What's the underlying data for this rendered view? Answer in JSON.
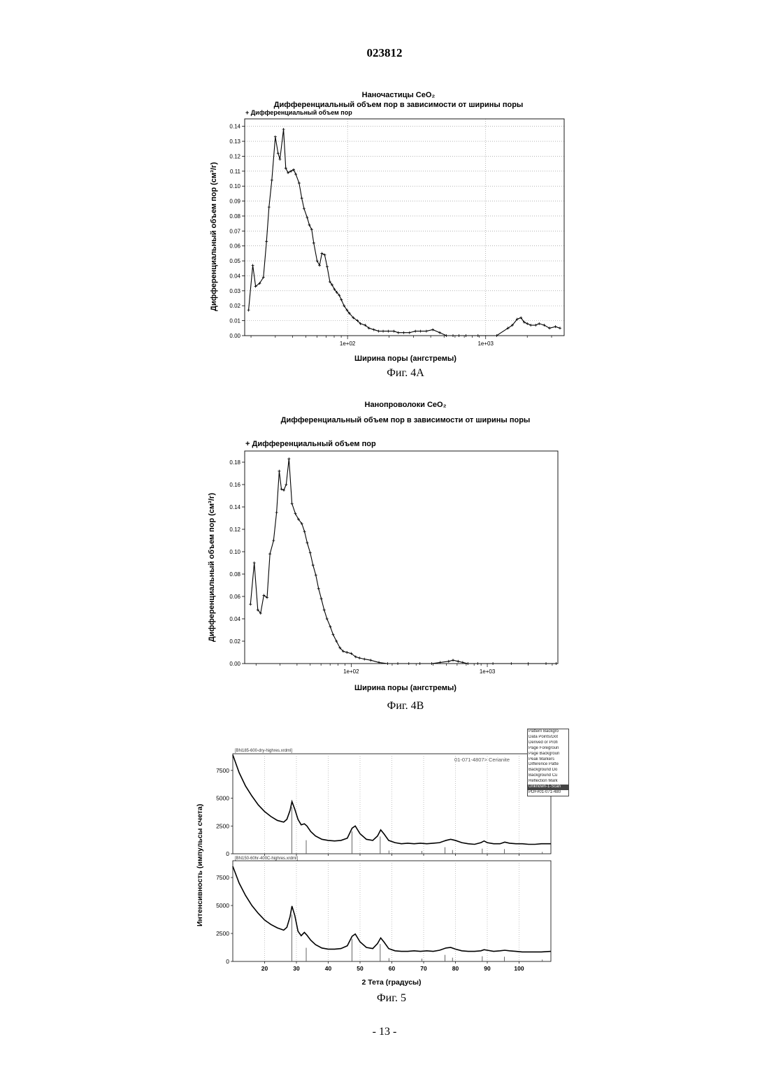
{
  "page": {
    "number": "023812",
    "footer": "- 13 -"
  },
  "fig4a": {
    "caption": "Фиг. 4А",
    "title": "Наночастицы CeO₂",
    "subtitle": "Дифференциальный объем пор в зависимости от ширины поры",
    "legend": "+ Дифференциальный объем пор",
    "ylabel": "Дифференциальный объем пор (см³/г)",
    "xlabel": "Ширина поры (ангстремы)"
  },
  "fig4b": {
    "caption": "Фиг. 4В",
    "title": "Нанопроволоки CeO₂",
    "subtitle": "Дифференциальный объем пор в зависимости от ширины поры",
    "legend": "+ Дифференциальный объем пор",
    "ylabel": "Дифференциальный объем пор (см³/г)",
    "xlabel": "Ширина поры (ангстремы)"
  },
  "fig5": {
    "caption": "Фиг. 5",
    "ylabel": "Интенсивность (импульсы счета)",
    "xlabel": "2 Тета (градусы)",
    "top_panel_label": "[BN185-600-dry-highres.xrdml]",
    "bottom_panel_label": "[BN150-60hr-400C-highres.xrdml]",
    "reference_label": "01-071-4807> Cerianite",
    "key_items": [
      "Pattern Backgro",
      "Data Points/Dot",
      "Derived or Profi",
      "Page Foregroun",
      "Page Backgroun",
      "Peak Markers",
      "Difference Patte",
      "Background Do",
      "Background Cu",
      "Reflection Mark",
      "Unknown-1-Scan",
      "PDF#01-071-480"
    ]
  },
  "chart_data": [
    {
      "id": "fig4a",
      "type": "line",
      "title": "Наночастицы CeO₂",
      "subtitle": "Дифференциальный объем пор в зависимости от ширины поры",
      "xlabel": "Ширина поры (ангстремы)",
      "ylabel": "Дифференциальный объем пор (см³/г)",
      "xscale": "log",
      "xlim": [
        18,
        3700
      ],
      "ylim": [
        0,
        0.145
      ],
      "xticks": [
        100,
        1000
      ],
      "xtick_labels": [
        "1e+02",
        "1e+03"
      ],
      "yticks": [
        0,
        0.01,
        0.02,
        0.03,
        0.04,
        0.05,
        0.06,
        0.07,
        0.08,
        0.09,
        0.1,
        0.11,
        0.12,
        0.13,
        0.14
      ],
      "ytick_labels": [
        "0.00",
        "0.01",
        "0.02",
        "0.03",
        "0.04",
        "0.05",
        "0.06",
        "0.07",
        "0.08",
        "0.09",
        "0.10",
        "0.11",
        "0.12",
        "0.13",
        "0.14"
      ],
      "grid": "dotted",
      "legend": "top-left",
      "series": [
        {
          "name": "Дифференциальный объем пор",
          "marker": "+",
          "x": [
            19.2,
            20.6,
            21.6,
            23.1,
            24.6,
            25.9,
            27.0,
            28.3,
            30.0,
            31.4,
            32.4,
            34.4,
            35.7,
            37.1,
            38.9,
            40.7,
            42.2,
            44.6,
            46.6,
            48.4,
            51.0,
            52.9,
            55.0,
            56.9,
            60.2,
            62.7,
            65.2,
            68.3,
            71.2,
            74.5,
            77.2,
            80.4,
            83.5,
            87.1,
            90.2,
            94.3,
            99.2,
            103,
            110,
            118,
            124,
            134,
            143,
            155,
            168,
            181,
            197,
            216,
            233,
            255,
            281,
            310,
            338,
            372,
            414,
            465,
            520,
            580,
            640,
            720,
            880,
            1200,
            1450,
            1560,
            1690,
            1800,
            1900,
            2000,
            2120,
            2300,
            2440,
            2650,
            2900,
            3200,
            3450
          ],
          "y": [
            0.017,
            0.047,
            0.033,
            0.035,
            0.039,
            0.063,
            0.086,
            0.104,
            0.133,
            0.122,
            0.118,
            0.138,
            0.112,
            0.109,
            0.11,
            0.111,
            0.108,
            0.102,
            0.092,
            0.085,
            0.079,
            0.074,
            0.071,
            0.062,
            0.05,
            0.047,
            0.055,
            0.054,
            0.046,
            0.036,
            0.034,
            0.031,
            0.029,
            0.027,
            0.024,
            0.02,
            0.017,
            0.015,
            0.012,
            0.01,
            0.008,
            0.007,
            0.005,
            0.004,
            0.003,
            0.003,
            0.003,
            0.003,
            0.002,
            0.002,
            0.002,
            0.003,
            0.003,
            0.003,
            0.004,
            0.002,
            0.0,
            0.0,
            0.0,
            0.0,
            0.0,
            0.0,
            0.005,
            0.007,
            0.011,
            0.012,
            0.009,
            0.008,
            0.007,
            0.007,
            0.008,
            0.007,
            0.005,
            0.006,
            0.005
          ]
        }
      ]
    },
    {
      "id": "fig4b",
      "type": "line",
      "title": "Нанопроволоки CeO₂",
      "subtitle": "Дифференциальный объем пор в зависимости от ширины поры",
      "xlabel": "Ширина поры (ангстремы)",
      "ylabel": "Дифференциальный объем пор (см³/г)",
      "xscale": "log",
      "xlim": [
        16.5,
        3300
      ],
      "ylim": [
        0,
        0.19
      ],
      "xticks": [
        100,
        1000
      ],
      "xtick_labels": [
        "1e+02",
        "1e+03"
      ],
      "yticks": [
        0,
        0.02,
        0.04,
        0.06,
        0.08,
        0.1,
        0.12,
        0.14,
        0.16,
        0.18
      ],
      "ytick_labels": [
        "0.00",
        "0.02",
        "0.04",
        "0.06",
        "0.08",
        "0.10",
        "0.12",
        "0.14",
        "0.16",
        "0.18"
      ],
      "grid": "off",
      "legend": "top-left",
      "series": [
        {
          "name": "Дифференциальный объем пор",
          "marker": "+",
          "x": [
            18.2,
            19.4,
            20.6,
            21.6,
            22.8,
            24.1,
            25.3,
            26.9,
            28.3,
            29.6,
            30.7,
            32.0,
            33.3,
            34.9,
            36.7,
            38.9,
            41.0,
            43.4,
            45.4,
            47.5,
            50.0,
            52.4,
            55.0,
            57.6,
            60.3,
            63.3,
            66.4,
            70.2,
            73.6,
            77.9,
            82.7,
            87.4,
            93.0,
            100,
            108,
            115,
            125,
            139,
            160,
            185,
            220,
            265,
            320,
            390,
            450,
            520,
            560,
            610,
            660,
            720,
            850,
            1100,
            1500,
            2000,
            2700,
            3200
          ],
          "y": [
            0.053,
            0.09,
            0.048,
            0.045,
            0.061,
            0.059,
            0.098,
            0.11,
            0.135,
            0.172,
            0.156,
            0.155,
            0.16,
            0.183,
            0.143,
            0.134,
            0.129,
            0.125,
            0.118,
            0.108,
            0.099,
            0.088,
            0.079,
            0.067,
            0.058,
            0.048,
            0.04,
            0.033,
            0.026,
            0.02,
            0.014,
            0.011,
            0.01,
            0.009,
            0.006,
            0.005,
            0.004,
            0.003,
            0.001,
            0.0,
            0.0,
            0.0,
            0.0,
            0.0,
            0.001,
            0.002,
            0.003,
            0.002,
            0.001,
            0.0,
            0.0,
            0.0,
            0.0,
            0.0,
            0.0,
            0.0
          ]
        }
      ]
    },
    {
      "id": "fig5",
      "type": "line",
      "xlabel": "2 Тета (градусы)",
      "ylabel": "Интенсивность (импульсы счета)",
      "xlim": [
        10,
        110
      ],
      "ylim": [
        0,
        9000
      ],
      "xticks": [
        20,
        30,
        40,
        50,
        60,
        70,
        80,
        90,
        100
      ],
      "yticks": [
        0,
        2500,
        5000,
        7500
      ],
      "panels": [
        {
          "label": "[BN185-600-dry-highres.xrdml]",
          "x": [
            10,
            12,
            14,
            16,
            18,
            20,
            22,
            24,
            26,
            27,
            28,
            28.6,
            29.5,
            30.5,
            31.5,
            32.5,
            33.3,
            34.5,
            36,
            38,
            40,
            42,
            44,
            46,
            47.5,
            48.5,
            50,
            52,
            54,
            55.5,
            56.5,
            57.5,
            59,
            61,
            63,
            65,
            67,
            69,
            71,
            73,
            75,
            77,
            78.5,
            80,
            82,
            84,
            86,
            88,
            89,
            90,
            92,
            94,
            95.5,
            97,
            99,
            101,
            103,
            105,
            107,
            110
          ],
          "y": [
            8900,
            7300,
            6100,
            5200,
            4400,
            3800,
            3350,
            3000,
            2850,
            3100,
            3900,
            4700,
            4000,
            3100,
            2600,
            2700,
            2500,
            2000,
            1600,
            1300,
            1200,
            1150,
            1200,
            1400,
            2300,
            2500,
            1800,
            1300,
            1200,
            1600,
            2150,
            1800,
            1200,
            1000,
            900,
            950,
            900,
            950,
            900,
            950,
            1000,
            1200,
            1300,
            1200,
            1000,
            900,
            850,
            1000,
            1150,
            1000,
            900,
            900,
            1050,
            950,
            900,
            900,
            850,
            850,
            900,
            900
          ]
        },
        {
          "label": "[BN150-60hr-400C-highres.xrdml]",
          "x": [
            10,
            12,
            14,
            16,
            18,
            20,
            22,
            24,
            26,
            27,
            28,
            28.6,
            29.5,
            30.5,
            31.5,
            32.5,
            33.3,
            34.5,
            36,
            38,
            40,
            42,
            44,
            46,
            47.5,
            48.5,
            50,
            52,
            54,
            55.5,
            56.5,
            57.5,
            59,
            61,
            63,
            65,
            67,
            69,
            71,
            73,
            75,
            77,
            78.5,
            80,
            82,
            84,
            86,
            88,
            89,
            90,
            92,
            94,
            95.5,
            97,
            99,
            101,
            103,
            105,
            107,
            110
          ],
          "y": [
            8500,
            7000,
            5900,
            5000,
            4300,
            3700,
            3300,
            3000,
            2800,
            3050,
            4000,
            4950,
            4100,
            2700,
            2300,
            2600,
            2350,
            1900,
            1500,
            1200,
            1100,
            1100,
            1150,
            1400,
            2250,
            2450,
            1750,
            1250,
            1150,
            1600,
            2100,
            1750,
            1150,
            950,
            900,
            900,
            950,
            900,
            950,
            900,
            1000,
            1200,
            1250,
            1100,
            950,
            900,
            900,
            950,
            1050,
            1000,
            900,
            950,
            1000,
            950,
            900,
            850,
            850,
            850,
            850,
            900
          ]
        }
      ],
      "reference_peaks": [
        {
          "x": 28.55,
          "rel": 1.0
        },
        {
          "x": 33.08,
          "rel": 0.29
        },
        {
          "x": 47.48,
          "rel": 0.48
        },
        {
          "x": 56.34,
          "rel": 0.37
        },
        {
          "x": 59.09,
          "rel": 0.07
        },
        {
          "x": 69.42,
          "rel": 0.06
        },
        {
          "x": 76.7,
          "rel": 0.14
        },
        {
          "x": 79.07,
          "rel": 0.08
        },
        {
          "x": 88.43,
          "rel": 0.11
        },
        {
          "x": 95.4,
          "rel": 0.1
        },
        {
          "x": 107.3,
          "rel": 0.04
        }
      ]
    }
  ]
}
